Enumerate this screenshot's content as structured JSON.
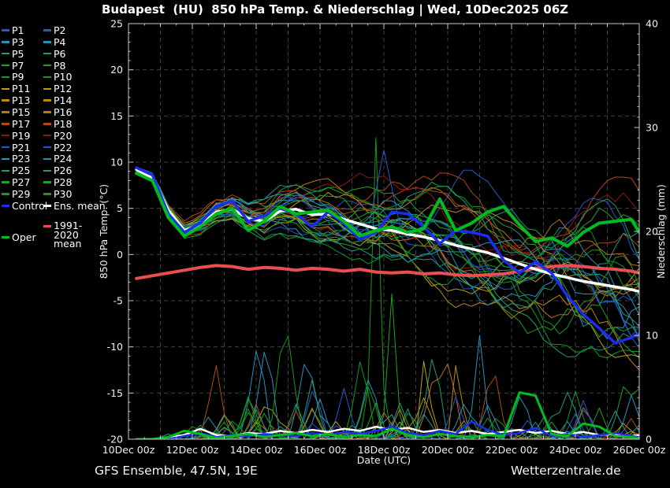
{
  "title": "Budapest  (HU)  850 hPa Temp. & Niederschlag | Wed, 10Dec2025 06Z",
  "footer": {
    "left": "GFS Ensemble, 47.5N, 19E",
    "right": "Wetterzentrale.de"
  },
  "legend": {
    "member_labels": [
      "P1",
      "P2",
      "P3",
      "P4",
      "P5",
      "P6",
      "P7",
      "P8",
      "P9",
      "P10",
      "P11",
      "P12",
      "P13",
      "P14",
      "P15",
      "P16",
      "P17",
      "P18",
      "P19",
      "P20",
      "P21",
      "P22",
      "P23",
      "P24",
      "P25",
      "P26",
      "P27",
      "P28",
      "P29",
      "P30"
    ],
    "control": {
      "label": "Control",
      "color": "#1c2cf0"
    },
    "ens_mean": {
      "label": "Ens. mean",
      "color": "#ffffff"
    },
    "climate": {
      "label": "1991-2020 mean",
      "color": "#ea4f4f"
    },
    "oper": {
      "label": "Oper",
      "color": "#00bc20"
    }
  },
  "axes": {
    "left": {
      "title": "850 hPa Temp. (°C)",
      "ticks": [
        25,
        20,
        15,
        10,
        5,
        0,
        -5,
        -10,
        -15,
        -20
      ],
      "range": [
        -20,
        25
      ]
    },
    "right": {
      "title": "Niederschlag (mm)",
      "ticks": [
        0,
        10,
        20,
        30,
        40
      ],
      "range": [
        0,
        40
      ]
    },
    "x": {
      "title": "Date (UTC)",
      "tick_labels": [
        "10Dec 00z",
        "12Dec 00z",
        "14Dec 00z",
        "16Dec 00z",
        "18Dec 00z",
        "20Dec 00z",
        "22Dec 00z",
        "24Dec 00z",
        "26Dec 00z"
      ],
      "tick_days": [
        0,
        2,
        4,
        6,
        8,
        10,
        12,
        14,
        16
      ]
    }
  },
  "chart_data": {
    "type": "line",
    "x_unit": "days since 10Dec 00z UTC",
    "t_days": [
      0.25,
      0.75,
      1.25,
      1.75,
      2.25,
      2.75,
      3.25,
      3.75,
      4.25,
      4.75,
      5.25,
      5.75,
      6.25,
      6.75,
      7.25,
      7.75,
      8.25,
      8.75,
      9.25,
      9.75,
      10.25,
      10.75,
      11.25,
      11.75,
      12.25,
      12.75,
      13.25,
      13.75,
      14.25,
      14.75,
      15.25,
      15.75,
      16.0
    ],
    "ylim_left": [
      -20,
      25
    ],
    "ylim_right": [
      0,
      40
    ],
    "grid": true,
    "legend_position": "outside-left",
    "series": [
      {
        "name": "Ens. mean temp",
        "axis": "left",
        "color": "#ffffff",
        "width": 3.5,
        "values": [
          9.2,
          8.3,
          4.8,
          2.6,
          3.2,
          4.6,
          4.9,
          3.9,
          3.6,
          4.7,
          4.9,
          4.3,
          4.4,
          3.8,
          3.3,
          2.8,
          2.6,
          2.2,
          1.9,
          1.5,
          1.0,
          0.6,
          0.2,
          -0.4,
          -1.0,
          -1.6,
          -2.1,
          -2.5,
          -2.9,
          -3.2,
          -3.5,
          -3.8,
          -4.0
        ]
      },
      {
        "name": "Control temp",
        "axis": "left",
        "color": "#1c2cf0",
        "width": 3.5,
        "values": [
          9.4,
          8.6,
          4.4,
          2.4,
          3.4,
          5.2,
          5.8,
          3.6,
          4.2,
          5.0,
          4.4,
          3.0,
          4.6,
          3.4,
          1.6,
          2.4,
          4.6,
          4.4,
          3.0,
          1.2,
          2.6,
          2.4,
          2.0,
          -0.6,
          -2.0,
          -0.8,
          -2.0,
          -4.5,
          -6.5,
          -8.0,
          -9.6,
          -9.0,
          -8.6
        ]
      },
      {
        "name": "Oper temp",
        "axis": "left",
        "color": "#00bc20",
        "width": 4,
        "values": [
          8.8,
          8.0,
          4.0,
          2.0,
          3.0,
          4.4,
          5.0,
          2.6,
          3.6,
          5.2,
          4.4,
          4.6,
          4.8,
          3.6,
          2.0,
          2.6,
          3.0,
          2.4,
          2.8,
          6.0,
          2.6,
          3.4,
          4.6,
          5.2,
          3.2,
          1.4,
          1.8,
          0.9,
          2.4,
          3.4,
          3.6,
          3.8,
          2.4
        ]
      },
      {
        "name": "1991-2020 mean temp",
        "axis": "left",
        "color": "#ea4f4f",
        "width": 4,
        "values": [
          -2.6,
          -2.3,
          -2.0,
          -1.7,
          -1.4,
          -1.2,
          -1.3,
          -1.6,
          -1.4,
          -1.5,
          -1.7,
          -1.5,
          -1.6,
          -1.8,
          -1.6,
          -1.9,
          -2.0,
          -1.9,
          -2.1,
          -2.0,
          -2.2,
          -2.3,
          -2.2,
          -2.1,
          -1.8,
          -1.5,
          -1.3,
          -1.2,
          -1.3,
          -1.5,
          -1.6,
          -1.8,
          -2.0
        ]
      },
      {
        "name": "Ens. mean precip",
        "axis": "right",
        "color": "#ffffff",
        "width": 2.5,
        "values": [
          0,
          0,
          0.2,
          0.4,
          1.0,
          0.4,
          0.3,
          0.6,
          0.5,
          0.8,
          0.6,
          0.9,
          0.7,
          1.0,
          0.8,
          1.2,
          0.9,
          1.1,
          0.7,
          0.9,
          0.6,
          0.8,
          0.5,
          0.7,
          0.9,
          0.6,
          0.8,
          0.5,
          0.7,
          0.4,
          0.5,
          0.3,
          0.4
        ]
      },
      {
        "name": "Control precip",
        "axis": "right",
        "color": "#1c2cf0",
        "width": 2.5,
        "values": [
          0,
          0,
          0,
          0.3,
          0.6,
          0.2,
          0.4,
          0.3,
          0.5,
          0.4,
          0.3,
          0.6,
          0.4,
          0.7,
          0.5,
          0.8,
          1.2,
          0.6,
          0.4,
          0.8,
          0.5,
          1.7,
          0.9,
          0.4,
          0.6,
          1.1,
          0.3,
          0.5,
          0.2,
          0.4,
          0.6,
          0.3,
          0.2
        ]
      },
      {
        "name": "Oper precip",
        "axis": "right",
        "color": "#00bc20",
        "width": 3,
        "values": [
          0,
          0,
          0.2,
          0.8,
          0.5,
          0.1,
          0.3,
          0.5,
          0.2,
          0.4,
          0.6,
          0.3,
          0.5,
          0.2,
          0.4,
          0.3,
          1.0,
          0.4,
          0.2,
          0.5,
          0.3,
          0.2,
          0.4,
          0.3,
          4.5,
          4.2,
          0.5,
          0.3,
          1.5,
          1.2,
          0.3,
          0.2,
          0.1
        ]
      }
    ],
    "ensemble": {
      "n_members": 30,
      "pair_colors": [
        "#2458c8",
        "#2293bb",
        "#17a077",
        "#22a02a",
        "#109c1c",
        "#b2a40e",
        "#c08a10",
        "#c27012",
        "#b04a10",
        "#8f1a0e",
        "#2458c8",
        "#2293bb",
        "#17a077",
        "#22a02a",
        "#109c1c"
      ],
      "seed": 42,
      "step_days": 0.25,
      "t_start": 0.25,
      "t_end": 16.0,
      "temp_spread": {
        "base": 0.4,
        "per_day": 0.58,
        "max": 9.5
      },
      "precip_event_chance": 0.1,
      "precip_spike_max_mm": 10,
      "anomalies": [
        {
          "member": 21,
          "kind": "temp",
          "t": 8.0,
          "value": 11.3,
          "width": 0.6
        },
        {
          "member": 1,
          "kind": "temp",
          "t": 10.6,
          "value": 9.5,
          "width": 0.9
        },
        {
          "member": 9,
          "kind": "precip",
          "t": 7.75,
          "value": 29,
          "width": 0.3
        },
        {
          "member": 27,
          "kind": "precip",
          "t": 8.25,
          "value": 14,
          "width": 0.3
        },
        {
          "member": 3,
          "kind": "precip",
          "t": 11.0,
          "value": 10,
          "width": 0.35
        },
        {
          "member": 13,
          "kind": "precip",
          "t": 10.3,
          "value": 8.5,
          "width": 0.3
        },
        {
          "member": 11,
          "kind": "precip",
          "t": 9.3,
          "value": 9,
          "width": 0.3
        }
      ]
    }
  }
}
